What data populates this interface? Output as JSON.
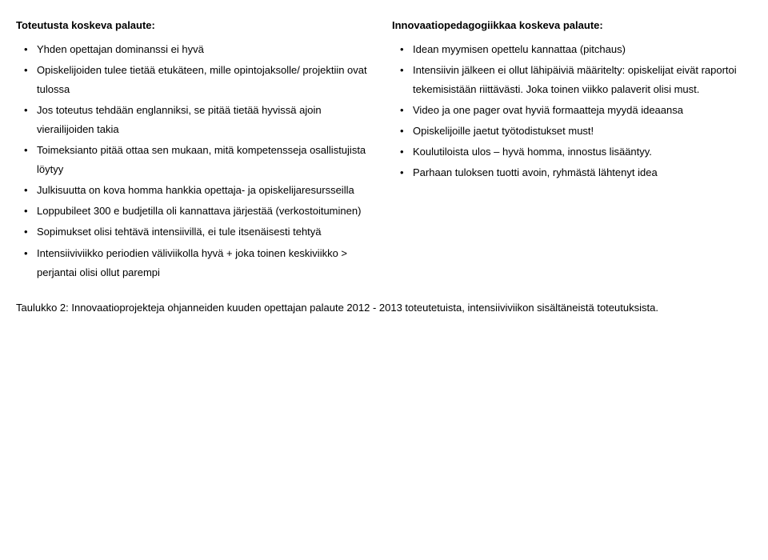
{
  "left": {
    "title": "Toteutusta koskeva palaute:",
    "items": [
      "Yhden opettajan dominanssi ei hyvä",
      "Opiskelijoiden tulee tietää etukäteen, mille opintojaksolle/ projektiin ovat tulossa",
      "Jos toteutus tehdään englanniksi, se pitää tietää hyvissä ajoin vierailijoiden takia",
      "Toimeksianto pitää ottaa sen mukaan, mitä kompetensseja osallistujista löytyy",
      "Julkisuutta on kova homma hankkia opettaja- ja opiskelijaresursseilla",
      "Loppubileet 300 e budjetilla oli kannattava järjestää (verkostoituminen)",
      "Sopimukset olisi tehtävä intensiivillä, ei tule itsenäisesti tehtyä",
      "Intensiiviviikko periodien väliviikolla hyvä + joka toinen keskiviikko > perjantai olisi ollut parempi"
    ]
  },
  "right": {
    "title": "Innovaatiopedagogiikkaa koskeva palaute:",
    "items": [
      "Idean myymisen opettelu kannattaa (pitchaus)",
      "Intensiivin jälkeen ei ollut lähipäiviä määritelty: opiskelijat eivät raportoi tekemisistään riittävästi. Joka toinen viikko palaverit olisi must.",
      "Video ja one pager ovat hyviä formaatteja myydä ideaansa",
      "Opiskelijoille jaetut työtodistukset must!",
      "Koulutiloista ulos – hyvä homma, innostus lisääntyy.",
      "Parhaan tuloksen tuotti avoin, ryhmästä lähtenyt idea"
    ]
  },
  "caption": "Taulukko 2: Innovaatioprojekteja ohjanneiden kuuden opettajan palaute 2012 - 2013 toteutetuista, intensiiviviikon sisältäneistä toteutuksista."
}
